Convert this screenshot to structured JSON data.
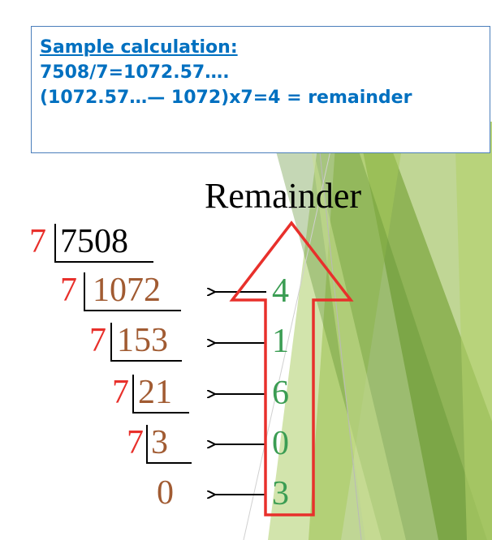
{
  "callout": {
    "heading": "Sample calculation:",
    "line1": "7508/7=1072.57….",
    "line2": "(1072.57…— 1072)x7=4 = remainder"
  },
  "diagram": {
    "title": "Remainder",
    "steps": [
      {
        "divisor": "7",
        "dividend": "7508",
        "remainder": ""
      },
      {
        "divisor": "7",
        "dividend": "1072",
        "remainder": "4"
      },
      {
        "divisor": "7",
        "dividend": "153",
        "remainder": "1"
      },
      {
        "divisor": "7",
        "dividend": "21",
        "remainder": "6"
      },
      {
        "divisor": "7",
        "dividend": "3",
        "remainder": "0"
      },
      {
        "divisor": "",
        "dividend": "0",
        "remainder": "3"
      }
    ]
  },
  "colors": {
    "divisor": "#e8302b",
    "dividend_first": "#000000",
    "dividend": "#a15b32",
    "remainder": "#3b9d53",
    "arrow_outline": "#e8302b",
    "callout_text": "#0070c0"
  }
}
